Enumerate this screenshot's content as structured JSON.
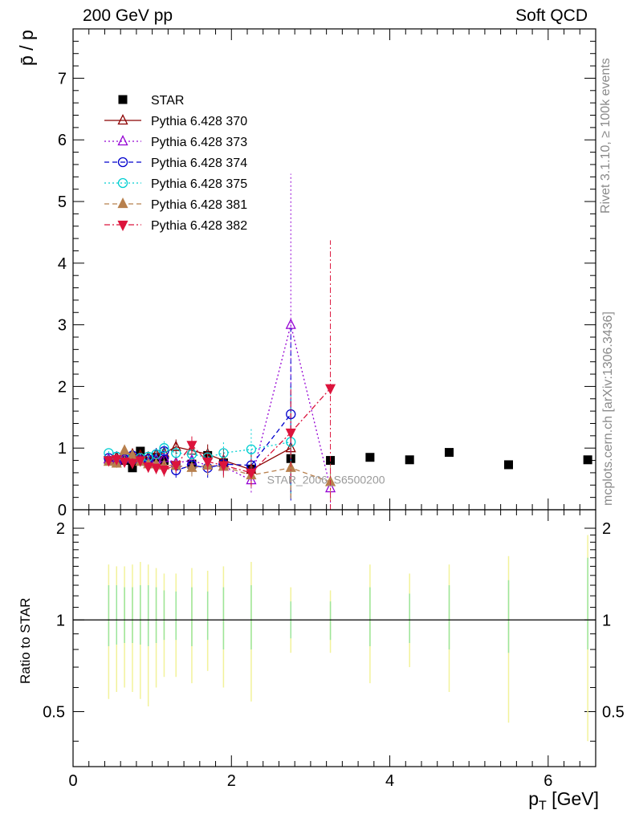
{
  "header": {
    "left": "200 GeV pp",
    "right": "Soft QCD"
  },
  "side_labels": {
    "rivet": "Rivet 3.1.10, ≥ 100k events",
    "mcplots": "mcplots.cern.ch [arXiv:1306.3436]"
  },
  "chart_data": [
    {
      "panel": "main",
      "type": "scatter",
      "ylabel": "p̄ / p",
      "xlim": [
        0,
        6.6
      ],
      "ylim": [
        0,
        7.8
      ],
      "yticks": [
        0,
        1,
        2,
        3,
        4,
        5,
        6,
        7
      ],
      "annotation": "STAR_2006_S6500200",
      "series": [
        {
          "name": "STAR",
          "color": "#000000",
          "marker": "square",
          "line": "none",
          "x": [
            0.45,
            0.55,
            0.65,
            0.75,
            0.85,
            0.95,
            1.05,
            1.15,
            1.3,
            1.5,
            1.7,
            1.9,
            2.25,
            2.75,
            3.25,
            3.75,
            4.25,
            4.75,
            5.5,
            6.5
          ],
          "y": [
            0.8,
            0.78,
            0.8,
            0.68,
            0.95,
            0.78,
            0.85,
            0.8,
            0.72,
            0.74,
            0.88,
            0.76,
            0.66,
            0.83,
            0.8,
            0.85,
            0.81,
            0.93,
            0.73,
            0.81
          ]
        },
        {
          "name": "Pythia 6.428 370",
          "color": "#8b0000",
          "marker": "triangle-up-open",
          "line": "solid",
          "x": [
            0.45,
            0.55,
            0.65,
            0.75,
            0.85,
            0.95,
            1.05,
            1.15,
            1.3,
            1.5,
            1.7,
            1.9,
            2.25,
            2.75
          ],
          "y": [
            0.82,
            0.85,
            0.86,
            0.9,
            0.88,
            0.85,
            0.9,
            0.92,
            1.02,
            0.96,
            0.9,
            0.8,
            0.65,
            1.0
          ],
          "err": [
            0.06,
            0.07,
            0.07,
            0.08,
            0.08,
            0.09,
            0.1,
            0.11,
            0.12,
            0.14,
            0.16,
            0.18,
            0.25,
            0.8
          ]
        },
        {
          "name": "Pythia 6.428 373",
          "color": "#9400d3",
          "marker": "triangle-up-open",
          "line": "dotted",
          "x": [
            0.45,
            0.55,
            0.65,
            0.75,
            0.85,
            0.95,
            1.05,
            1.15,
            1.3,
            1.5,
            1.7,
            1.9,
            2.25,
            2.75,
            3.25
          ],
          "y": [
            0.82,
            0.8,
            0.84,
            0.86,
            0.82,
            0.78,
            0.82,
            0.84,
            0.76,
            0.8,
            0.72,
            0.7,
            0.48,
            3.0,
            0.35
          ],
          "err": [
            0.06,
            0.07,
            0.07,
            0.08,
            0.08,
            0.09,
            0.1,
            0.11,
            0.12,
            0.14,
            0.16,
            0.18,
            0.2,
            2.45,
            0.3
          ]
        },
        {
          "name": "Pythia 6.428 374",
          "color": "#0000cd",
          "marker": "circle-open",
          "line": "dashed",
          "x": [
            0.45,
            0.55,
            0.65,
            0.75,
            0.85,
            0.95,
            1.05,
            1.15,
            1.3,
            1.5,
            1.7,
            1.9,
            2.25,
            2.75
          ],
          "y": [
            0.84,
            0.86,
            0.82,
            0.88,
            0.8,
            0.82,
            0.9,
            0.95,
            0.64,
            0.72,
            0.68,
            0.74,
            0.72,
            1.55
          ],
          "err": [
            0.06,
            0.07,
            0.07,
            0.08,
            0.08,
            0.09,
            0.1,
            0.11,
            0.12,
            0.14,
            0.16,
            0.18,
            0.22,
            1.4
          ]
        },
        {
          "name": "Pythia 6.428 375",
          "color": "#00ced1",
          "marker": "circle-open",
          "line": "dotted",
          "x": [
            0.45,
            0.55,
            0.65,
            0.75,
            0.85,
            0.95,
            1.05,
            1.15,
            1.3,
            1.5,
            1.7,
            1.9,
            2.25,
            2.75
          ],
          "y": [
            0.92,
            0.86,
            0.85,
            0.82,
            0.84,
            0.86,
            0.9,
            1.0,
            0.92,
            0.9,
            0.85,
            0.92,
            0.98,
            1.1
          ],
          "err": [
            0.06,
            0.07,
            0.07,
            0.08,
            0.08,
            0.09,
            0.1,
            0.11,
            0.12,
            0.14,
            0.16,
            0.18,
            0.35,
            0.9
          ]
        },
        {
          "name": "Pythia 6.428 381",
          "color": "#b8804d",
          "marker": "triangle-up-filled",
          "line": "dashed",
          "x": [
            0.45,
            0.55,
            0.65,
            0.75,
            0.85,
            0.95,
            1.05,
            1.15,
            1.3,
            1.5,
            1.7,
            1.9,
            2.25,
            2.75,
            3.25
          ],
          "y": [
            0.78,
            0.75,
            0.96,
            0.88,
            0.78,
            0.74,
            0.74,
            0.72,
            0.72,
            0.68,
            0.72,
            0.7,
            0.56,
            0.68,
            0.45
          ],
          "err": [
            0.06,
            0.07,
            0.07,
            0.08,
            0.08,
            0.09,
            0.1,
            0.11,
            0.12,
            0.14,
            0.16,
            0.18,
            0.2,
            0.5,
            0.3
          ]
        },
        {
          "name": "Pythia 6.428 382",
          "color": "#dc143c",
          "marker": "triangle-down-filled",
          "line": "dashdot",
          "x": [
            0.45,
            0.55,
            0.65,
            0.75,
            0.85,
            0.95,
            1.05,
            1.15,
            1.3,
            1.5,
            1.7,
            1.9,
            2.25,
            2.75,
            3.25
          ],
          "y": [
            0.8,
            0.82,
            0.78,
            0.76,
            0.8,
            0.7,
            0.68,
            0.65,
            0.72,
            1.05,
            0.78,
            0.72,
            0.6,
            1.25,
            1.97
          ],
          "err": [
            0.06,
            0.07,
            0.07,
            0.08,
            0.08,
            0.09,
            0.1,
            0.11,
            0.12,
            0.14,
            0.16,
            0.18,
            0.22,
            0.75,
            2.4
          ]
        }
      ]
    },
    {
      "panel": "ratio",
      "type": "line",
      "ylabel": "Ratio to STAR",
      "xlabel": "p_T [GeV]",
      "xlim": [
        0,
        6.6
      ],
      "ylim": [
        0.33,
        2.3
      ],
      "yticks": [
        0.5,
        1,
        2
      ],
      "xticks": [
        0,
        2,
        4,
        6
      ],
      "reference": 1,
      "bands": [
        {
          "x": 0.45,
          "inner": [
            0.82,
            1.3
          ],
          "outer": [
            0.55,
            1.52
          ]
        },
        {
          "x": 0.55,
          "inner": [
            0.83,
            1.3
          ],
          "outer": [
            0.58,
            1.5
          ]
        },
        {
          "x": 0.65,
          "inner": [
            0.84,
            1.28
          ],
          "outer": [
            0.6,
            1.5
          ]
        },
        {
          "x": 0.75,
          "inner": [
            0.84,
            1.28
          ],
          "outer": [
            0.58,
            1.52
          ]
        },
        {
          "x": 0.85,
          "inner": [
            0.83,
            1.3
          ],
          "outer": [
            0.55,
            1.55
          ]
        },
        {
          "x": 0.95,
          "inner": [
            0.82,
            1.3
          ],
          "outer": [
            0.52,
            1.52
          ]
        },
        {
          "x": 1.05,
          "inner": [
            0.84,
            1.28
          ],
          "outer": [
            0.6,
            1.48
          ]
        },
        {
          "x": 1.15,
          "inner": [
            0.86,
            1.25
          ],
          "outer": [
            0.65,
            1.42
          ]
        },
        {
          "x": 1.3,
          "inner": [
            0.86,
            1.24
          ],
          "outer": [
            0.65,
            1.42
          ]
        },
        {
          "x": 1.5,
          "inner": [
            0.82,
            1.28
          ],
          "outer": [
            0.62,
            1.48
          ]
        },
        {
          "x": 1.7,
          "inner": [
            0.86,
            1.24
          ],
          "outer": [
            0.68,
            1.45
          ]
        },
        {
          "x": 1.9,
          "inner": [
            0.8,
            1.28
          ],
          "outer": [
            0.6,
            1.5
          ]
        },
        {
          "x": 2.25,
          "inner": [
            0.8,
            1.3
          ],
          "outer": [
            0.54,
            1.55
          ]
        },
        {
          "x": 2.75,
          "inner": [
            0.87,
            1.15
          ],
          "outer": [
            0.78,
            1.28
          ]
        },
        {
          "x": 3.25,
          "inner": [
            0.86,
            1.15
          ],
          "outer": [
            0.78,
            1.25
          ]
        },
        {
          "x": 3.75,
          "inner": [
            0.82,
            1.28
          ],
          "outer": [
            0.62,
            1.52
          ]
        },
        {
          "x": 4.25,
          "inner": [
            0.84,
            1.22
          ],
          "outer": [
            0.7,
            1.42
          ]
        },
        {
          "x": 4.75,
          "inner": [
            0.8,
            1.3
          ],
          "outer": [
            0.58,
            1.52
          ]
        },
        {
          "x": 5.5,
          "inner": [
            0.78,
            1.35
          ],
          "outer": [
            0.46,
            1.62
          ]
        },
        {
          "x": 6.5,
          "inner": [
            0.8,
            1.6
          ],
          "outer": [
            0.4,
            1.9
          ]
        }
      ]
    }
  ]
}
